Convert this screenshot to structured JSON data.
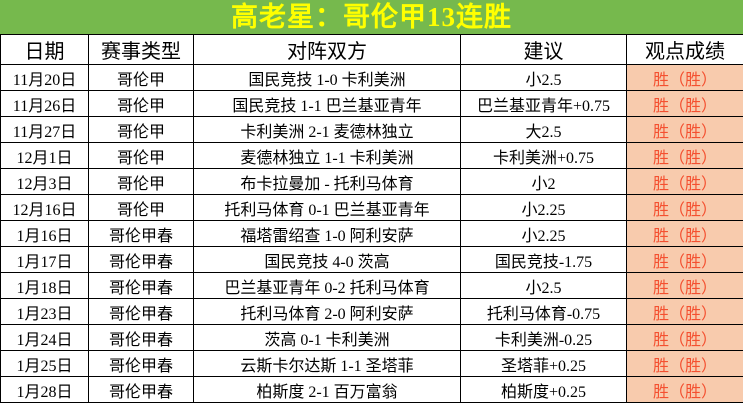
{
  "title": "高老星：哥伦甲13连胜",
  "colors": {
    "title_bg": "#76B94D",
    "title_text": "#FFFF00",
    "result_bg": "#F8CBAD",
    "result_text": "#F45030",
    "border": "#000000"
  },
  "table": {
    "headers": [
      "日期",
      "赛事类型",
      "对阵双方",
      "建议",
      "观点成绩"
    ],
    "rows": [
      [
        "11月20日",
        "哥伦甲",
        "国民竞技 1-0 卡利美洲",
        "小2.5",
        "胜（胜）"
      ],
      [
        "11月26日",
        "哥伦甲",
        "国民竞技 1-1 巴兰基亚青年",
        "巴兰基亚青年+0.75",
        "胜（胜）"
      ],
      [
        "11月27日",
        "哥伦甲",
        "卡利美洲 2-1 麦德林独立",
        "大2.5",
        "胜（胜）"
      ],
      [
        "12月1日",
        "哥伦甲",
        "麦德林独立 1-1 卡利美洲",
        "卡利美洲+0.75",
        "胜（胜）"
      ],
      [
        "12月3日",
        "哥伦甲",
        "布卡拉曼加 - 托利马体育",
        "小2",
        "胜（胜）"
      ],
      [
        "12月16日",
        "哥伦甲",
        "托利马体育 0-1 巴兰基亚青年",
        "小2.25",
        "胜（胜）"
      ],
      [
        "1月16日",
        "哥伦甲春",
        "福塔雷绍查 1-0 阿利安萨",
        "小2.25",
        "胜（胜）"
      ],
      [
        "1月17日",
        "哥伦甲春",
        "国民竞技 4-0 茨高",
        "国民竞技-1.75",
        "胜（胜）"
      ],
      [
        "1月18日",
        "哥伦甲春",
        "巴兰基亚青年 0-2 托利马体育",
        "小2.5",
        "胜（胜）"
      ],
      [
        "1月23日",
        "哥伦甲春",
        "托利马体育 2-0 阿利安萨",
        "托利马体育-0.75",
        "胜（胜）"
      ],
      [
        "1月24日",
        "哥伦甲春",
        "茨高 0-1 卡利美洲",
        "卡利美洲-0.25",
        "胜（胜）"
      ],
      [
        "1月25日",
        "哥伦甲春",
        "云斯卡尔达斯 1-1 圣塔菲",
        "圣塔菲+0.25",
        "胜（胜）"
      ],
      [
        "1月28日",
        "哥伦甲春",
        "柏斯度 2-1 百万富翁",
        "柏斯度+0.25",
        "胜（胜）"
      ]
    ]
  }
}
